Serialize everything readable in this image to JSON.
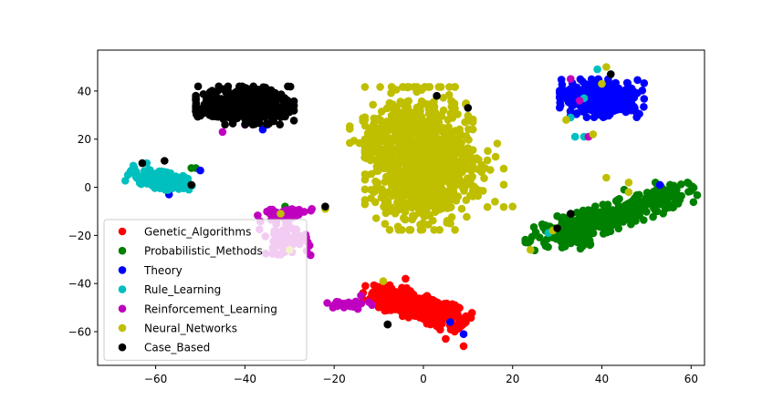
{
  "chart_data": {
    "type": "scatter",
    "title": "",
    "xlabel": "",
    "ylabel": "",
    "xlim": [
      -73,
      63
    ],
    "ylim": [
      -74,
      57
    ],
    "xticks": [
      -60,
      -40,
      -20,
      0,
      20,
      40,
      60
    ],
    "yticks": [
      -60,
      -40,
      -20,
      0,
      20,
      40
    ],
    "grid": false,
    "legend_position": "lower-left",
    "series": [
      {
        "name": "Genetic_Algorithms",
        "color": "#ff0000",
        "clusters": [
          {
            "cx": -1,
            "cy": -50,
            "sx": 5.5,
            "sy": 2.4,
            "angle": -33,
            "n": 360
          },
          {
            "cx": -8,
            "cy": -44,
            "sx": 2.5,
            "sy": 2,
            "angle": 0,
            "n": 40
          }
        ],
        "points": [
          [
            -13,
            -41
          ],
          [
            -4,
            -38
          ],
          [
            3,
            -55
          ],
          [
            7,
            -60
          ],
          [
            9,
            -66
          ],
          [
            -11,
            -48
          ],
          [
            5,
            -63
          ]
        ]
      },
      {
        "name": "Probabilistic_Methods",
        "color": "#008000",
        "clusters": [
          {
            "cx": 42,
            "cy": -12,
            "sx": 10,
            "sy": 2.4,
            "angle": 32,
            "n": 380
          },
          {
            "cx": 34,
            "cy": -20,
            "sx": 3,
            "sy": 2.5,
            "angle": 0,
            "n": 40
          }
        ],
        "points": [
          [
            -52,
            8
          ],
          [
            -51,
            8
          ],
          [
            -31,
            -8
          ],
          [
            55,
            -3
          ],
          [
            52,
            2
          ],
          [
            30,
            -12
          ],
          [
            45,
            -1
          ]
        ]
      },
      {
        "name": "Theory",
        "color": "#0000ff",
        "clusters": [
          {
            "cx": 40,
            "cy": 37,
            "sx": 4.3,
            "sy": 3.6,
            "angle": 0,
            "n": 320
          }
        ],
        "points": [
          [
            -50,
            7
          ],
          [
            -36,
            24
          ],
          [
            -47,
            34
          ],
          [
            -35,
            26
          ],
          [
            6,
            -56
          ],
          [
            9,
            -61
          ],
          [
            -57,
            -3
          ],
          [
            53,
            1
          ],
          [
            -41,
            38
          ],
          [
            -37,
            27
          ],
          [
            33,
            30
          ]
        ]
      },
      {
        "name": "Rule_Learning",
        "color": "#00bfbf",
        "clusters": [
          {
            "cx": -59,
            "cy": 3,
            "sx": 3.4,
            "sy": 1.6,
            "angle": -22,
            "n": 190
          }
        ],
        "points": [
          [
            -65,
            9
          ],
          [
            -62,
            10
          ],
          [
            39,
            49
          ],
          [
            36,
            37
          ],
          [
            34,
            21
          ],
          [
            28,
            -19
          ],
          [
            33,
            29
          ],
          [
            36,
            21
          ]
        ]
      },
      {
        "name": "Reinforcement_Learning",
        "color": "#bf00bf",
        "clusters": [
          {
            "cx": -31,
            "cy": -11,
            "sx": 2.8,
            "sy": 1.3,
            "angle": 10,
            "n": 60
          },
          {
            "cx": -17,
            "cy": -49,
            "sx": 2.5,
            "sy": 0.9,
            "angle": 0,
            "n": 28
          },
          {
            "cx": -31,
            "cy": -22,
            "sx": 2.6,
            "sy": 3,
            "angle": 0,
            "n": 60
          }
        ],
        "points": [
          [
            -5,
            35
          ],
          [
            -45,
            23
          ],
          [
            -40,
            26
          ],
          [
            -14,
            -45
          ],
          [
            33,
            45
          ],
          [
            37,
            21
          ],
          [
            35,
            36
          ],
          [
            -25,
            -9
          ]
        ]
      },
      {
        "name": "Neural_Networks",
        "color": "#bfbf00",
        "clusters": [
          {
            "cx": -1,
            "cy": 12,
            "sx": 5.5,
            "sy": 13.5,
            "angle": 0,
            "n": 900
          },
          {
            "cx": 7,
            "cy": 5,
            "sx": 5,
            "sy": 6,
            "angle": 0,
            "n": 120
          },
          {
            "cx": -11,
            "cy": 20,
            "sx": 2.5,
            "sy": 4,
            "angle": 0,
            "n": 60
          }
        ],
        "points": [
          [
            20,
            -8
          ],
          [
            24,
            -26
          ],
          [
            -30,
            -26
          ],
          [
            -32,
            -11
          ],
          [
            -22,
            -9
          ],
          [
            40,
            43
          ],
          [
            41,
            4
          ],
          [
            41,
            50
          ],
          [
            46,
            2
          ],
          [
            46,
            -2
          ],
          [
            29,
            -18
          ],
          [
            -9,
            -39
          ],
          [
            -5,
            35
          ],
          [
            -38,
            27
          ],
          [
            -29,
            33
          ],
          [
            32,
            28
          ],
          [
            38,
            22
          ]
        ]
      },
      {
        "name": "Case_Based",
        "color": "#000000",
        "clusters": [
          {
            "cx": -40,
            "cy": 34,
            "sx": 5,
            "sy": 3.6,
            "angle": 0,
            "n": 430
          }
        ],
        "points": [
          [
            -52,
            1
          ],
          [
            -63,
            10
          ],
          [
            -58,
            11
          ],
          [
            -22,
            -8
          ],
          [
            3,
            38
          ],
          [
            33,
            -11
          ],
          [
            30,
            -17
          ],
          [
            42,
            47
          ],
          [
            -8,
            -57
          ],
          [
            -8,
            -57
          ],
          [
            10,
            33
          ]
        ]
      }
    ]
  }
}
